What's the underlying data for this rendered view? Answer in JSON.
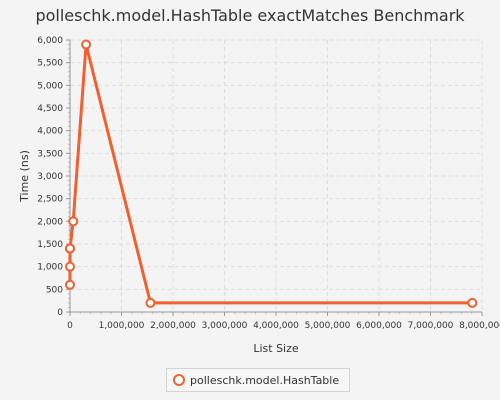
{
  "chart_data": {
    "type": "line",
    "title": "polleschk.model.HashTable exactMatches Benchmark",
    "xlabel": "List Size",
    "ylabel": "Time (ns)",
    "xlim": [
      0,
      8000000
    ],
    "ylim": [
      0,
      6000
    ],
    "x_ticks": [
      0,
      1000000,
      2000000,
      3000000,
      4000000,
      5000000,
      6000000,
      7000000,
      8000000
    ],
    "x_tick_labels": [
      "0",
      "1,000,000",
      "2,000,000",
      "3,000,000",
      "4,000,000",
      "5,000,000",
      "6,000,000",
      "7,000,000",
      "8,000,000"
    ],
    "y_ticks": [
      0,
      500,
      1000,
      1500,
      2000,
      2500,
      3000,
      3500,
      4000,
      4500,
      5000,
      5500,
      6000
    ],
    "y_tick_labels": [
      "0",
      "500",
      "1,000",
      "1,500",
      "2,000",
      "2,500",
      "3,000",
      "3,500",
      "4,000",
      "4,500",
      "5,000",
      "5,500",
      "6,000"
    ],
    "grid": true,
    "legend_position": "bottom-center",
    "series": [
      {
        "name": "polleschk.model.HashTable",
        "color": "#f06030",
        "x": [
          10,
          50,
          100,
          500,
          62500,
          312500,
          1562500,
          7812500
        ],
        "y": [
          600,
          1000,
          1400,
          1400,
          2000,
          5900,
          200,
          200
        ]
      }
    ]
  }
}
